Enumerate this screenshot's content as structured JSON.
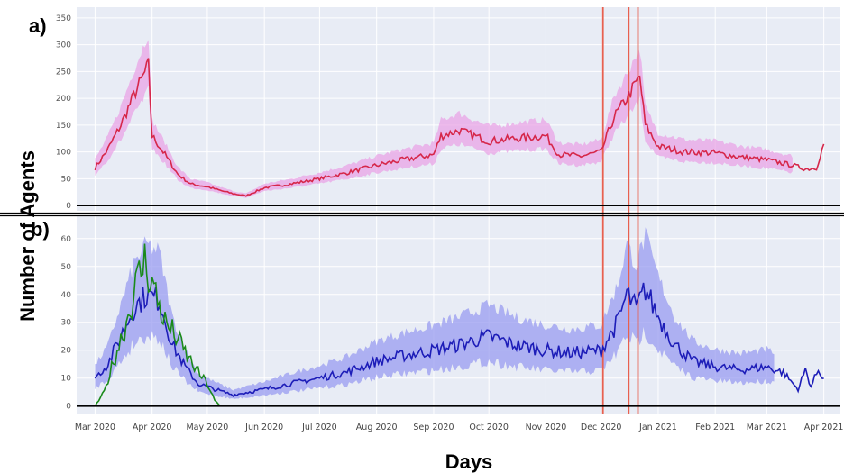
{
  "chart_data": [
    {
      "panel": "a)",
      "type": "line",
      "ylim": [
        -10,
        370
      ],
      "yticks": [
        0,
        50,
        100,
        150,
        200,
        250,
        300,
        350
      ],
      "series": [
        {
          "color": "#d6274a",
          "band_color": "#e9a4e6",
          "points": [
            [
              "2020-03-01",
              70
            ],
            [
              "2020-03-08",
              105
            ],
            [
              "2020-03-15",
              150
            ],
            [
              "2020-03-22",
              205
            ],
            [
              "2020-03-27",
              240
            ],
            [
              "2020-03-30",
              262
            ],
            [
              "2020-04-01",
              130
            ],
            [
              "2020-04-08",
              95
            ],
            [
              "2020-04-15",
              58
            ],
            [
              "2020-04-22",
              40
            ],
            [
              "2020-05-01",
              35
            ],
            [
              "2020-05-08",
              28
            ],
            [
              "2020-05-15",
              22
            ],
            [
              "2020-05-22",
              18
            ],
            [
              "2020-06-01",
              33
            ],
            [
              "2020-06-15",
              40
            ],
            [
              "2020-07-01",
              50
            ],
            [
              "2020-07-15",
              60
            ],
            [
              "2020-08-01",
              75
            ],
            [
              "2020-08-15",
              85
            ],
            [
              "2020-09-01",
              95
            ],
            [
              "2020-09-05",
              130
            ],
            [
              "2020-09-15",
              140
            ],
            [
              "2020-10-01",
              120
            ],
            [
              "2020-10-15",
              125
            ],
            [
              "2020-11-01",
              130
            ],
            [
              "2020-11-08",
              95
            ],
            [
              "2020-11-20",
              92
            ],
            [
              "2020-12-01",
              100
            ],
            [
              "2020-12-08",
              165
            ],
            [
              "2020-12-15",
              200
            ],
            [
              "2020-12-22",
              240
            ],
            [
              "2020-12-25",
              150
            ],
            [
              "2021-01-01",
              110
            ],
            [
              "2021-01-15",
              100
            ],
            [
              "2021-02-01",
              98
            ],
            [
              "2021-02-15",
              90
            ],
            [
              "2021-03-01",
              85
            ],
            [
              "2021-03-15",
              75
            ],
            [
              "2021-03-22",
              68
            ],
            [
              "2021-03-28",
              70
            ],
            [
              "2021-04-01",
              115
            ]
          ],
          "band_until": "2021-03-15"
        }
      ]
    },
    {
      "panel": "b)",
      "type": "line",
      "ylim": [
        -3,
        68
      ],
      "yticks": [
        0,
        10,
        20,
        30,
        40,
        50,
        60
      ],
      "series": [
        {
          "color": "#1d1db8",
          "band_color": "#9a9cf0",
          "points": [
            [
              "2020-03-01",
              10
            ],
            [
              "2020-03-08",
              15
            ],
            [
              "2020-03-15",
              25
            ],
            [
              "2020-03-22",
              35
            ],
            [
              "2020-03-29",
              40
            ],
            [
              "2020-04-05",
              38
            ],
            [
              "2020-04-12",
              22
            ],
            [
              "2020-04-19",
              14
            ],
            [
              "2020-04-26",
              8
            ],
            [
              "2020-05-05",
              6
            ],
            [
              "2020-05-15",
              4
            ],
            [
              "2020-06-01",
              6
            ],
            [
              "2020-06-15",
              8
            ],
            [
              "2020-07-01",
              10
            ],
            [
              "2020-07-15",
              12
            ],
            [
              "2020-08-01",
              16
            ],
            [
              "2020-08-15",
              18
            ],
            [
              "2020-09-01",
              20
            ],
            [
              "2020-09-15",
              22
            ],
            [
              "2020-10-01",
              25
            ],
            [
              "2020-10-15",
              22
            ],
            [
              "2020-11-01",
              20
            ],
            [
              "2020-11-15",
              19
            ],
            [
              "2020-12-01",
              20
            ],
            [
              "2020-12-10",
              30
            ],
            [
              "2020-12-15",
              40
            ],
            [
              "2020-12-20",
              35
            ],
            [
              "2020-12-25",
              42
            ],
            [
              "2021-01-01",
              32
            ],
            [
              "2021-01-10",
              22
            ],
            [
              "2021-01-20",
              16
            ],
            [
              "2021-02-01",
              14
            ],
            [
              "2021-02-15",
              13
            ],
            [
              "2021-03-01",
              14
            ],
            [
              "2021-03-10",
              12
            ],
            [
              "2021-03-18",
              6
            ],
            [
              "2021-03-22",
              13
            ],
            [
              "2021-03-25",
              7
            ],
            [
              "2021-03-29",
              13
            ],
            [
              "2021-04-01",
              10
            ]
          ],
          "band_until": "2021-03-05"
        },
        {
          "color": "#1a8a1a",
          "points": [
            [
              "2020-03-01",
              0
            ],
            [
              "2020-03-06",
              5
            ],
            [
              "2020-03-12",
              18
            ],
            [
              "2020-03-18",
              30
            ],
            [
              "2020-03-24",
              45
            ],
            [
              "2020-03-28",
              52
            ],
            [
              "2020-04-02",
              42
            ],
            [
              "2020-04-08",
              30
            ],
            [
              "2020-04-14",
              25
            ],
            [
              "2020-04-20",
              18
            ],
            [
              "2020-04-26",
              12
            ],
            [
              "2020-05-01",
              8
            ],
            [
              "2020-05-05",
              2
            ],
            [
              "2020-05-08",
              0
            ],
            [
              "2021-04-01",
              0
            ]
          ]
        }
      ]
    }
  ],
  "xticks": [
    "Mar 2020",
    "Apr 2020",
    "May 2020",
    "Jun 2020",
    "Jul 2020",
    "Aug 2020",
    "Sep 2020",
    "Oct 2020",
    "Nov 2020",
    "Dec 2020",
    "Jan 2021",
    "Feb 2021",
    "Mar 2021",
    "Apr 2021"
  ],
  "vlines": [
    "2020-12-02",
    "2020-12-16",
    "2020-12-21"
  ],
  "vline_color": "#e8604f",
  "panel_labels": [
    "a)",
    "b)"
  ],
  "ylabel": "Number of Agents",
  "xlabel": "Days",
  "panel_bg": "#e8ecf5"
}
